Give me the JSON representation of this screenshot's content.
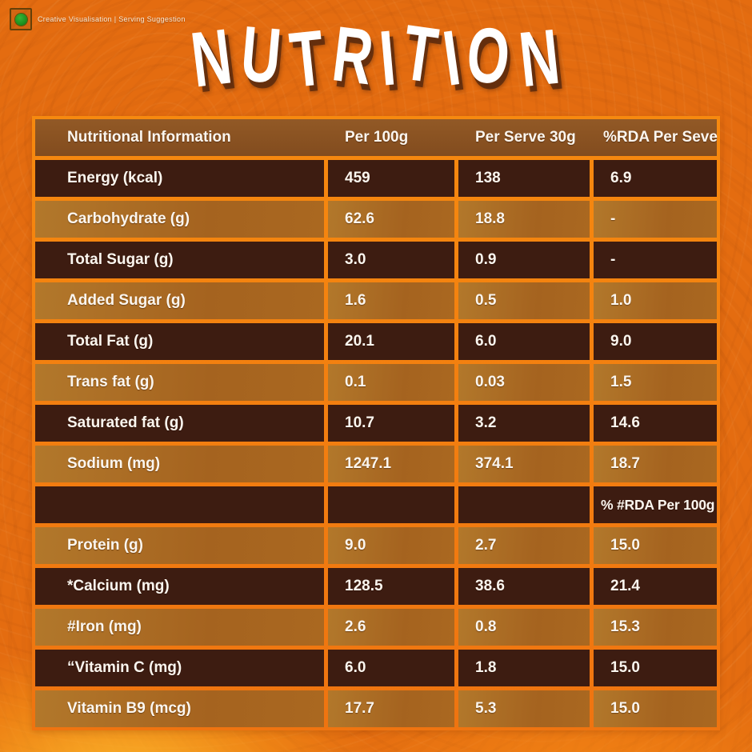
{
  "badge": {
    "disclaimer": "Creative Visualisation | Serving Suggestion",
    "veg_symbol": "green-dot-vegetarian-mark"
  },
  "title": "NUTRITION",
  "table": {
    "headers": [
      "Nutritional Information",
      "Per 100g",
      "Per Serve 30g",
      "%RDA Per Seve"
    ],
    "rows": [
      {
        "label": "Energy (kcal)",
        "per_100g": "459",
        "per_serve_30g": "138",
        "rda_per_serve": "6.9"
      },
      {
        "label": "Carbohydrate (g)",
        "per_100g": "62.6",
        "per_serve_30g": "18.8",
        "rda_per_serve": "-"
      },
      {
        "label": "Total Sugar (g)",
        "per_100g": "3.0",
        "per_serve_30g": "0.9",
        "rda_per_serve": "-"
      },
      {
        "label": "Added Sugar (g)",
        "per_100g": "1.6",
        "per_serve_30g": "0.5",
        "rda_per_serve": "1.0"
      },
      {
        "label": "Total Fat (g)",
        "per_100g": "20.1",
        "per_serve_30g": "6.0",
        "rda_per_serve": "9.0"
      },
      {
        "label": "Trans fat (g)",
        "per_100g": "0.1",
        "per_serve_30g": "0.03",
        "rda_per_serve": "1.5"
      },
      {
        "label": "Saturated fat (g)",
        "per_100g": "10.7",
        "per_serve_30g": "3.2",
        "rda_per_serve": "14.6"
      },
      {
        "label": "Sodium (mg)",
        "per_100g": "1247.1",
        "per_serve_30g": "374.1",
        "rda_per_serve": "18.7"
      },
      {
        "label": "",
        "per_100g": "",
        "per_serve_30g": "",
        "rda_per_serve": "% #RDA Per 100g"
      },
      {
        "label": "Protein (g)",
        "per_100g": "9.0",
        "per_serve_30g": "2.7",
        "rda_per_serve": "15.0"
      },
      {
        "label": "*Calcium (mg)",
        "per_100g": "128.5",
        "per_serve_30g": "38.6",
        "rda_per_serve": "21.4"
      },
      {
        "label": "#Iron (mg)",
        "per_100g": "2.6",
        "per_serve_30g": "0.8",
        "rda_per_serve": "15.3"
      },
      {
        "label": "“Vitamin C (mg)",
        "per_100g": "6.0",
        "per_serve_30g": "1.8",
        "rda_per_serve": "15.0"
      },
      {
        "label": "Vitamin B9 (mcg)",
        "per_100g": "17.7",
        "per_serve_30g": "5.3",
        "rda_per_serve": "15.0"
      }
    ]
  },
  "colors": {
    "background_orange": "#e46c10",
    "table_frame_orange": "#f6890f",
    "header_brown": "#8a5322",
    "row_dark_brown": "#3d1c11",
    "row_light_brown": "#a96a22",
    "text_white": "#fbf6ef",
    "bottom_glow_yellow": "#fdb92c",
    "veg_mark_green": "#1f9421"
  }
}
